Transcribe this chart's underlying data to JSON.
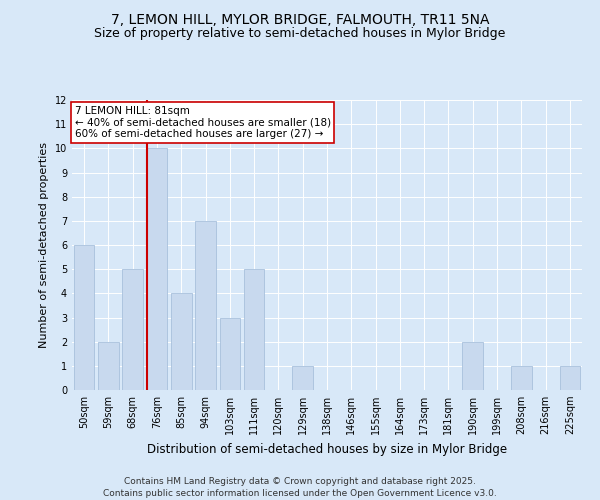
{
  "title": "7, LEMON HILL, MYLOR BRIDGE, FALMOUTH, TR11 5NA",
  "subtitle": "Size of property relative to semi-detached houses in Mylor Bridge",
  "xlabel": "Distribution of semi-detached houses by size in Mylor Bridge",
  "ylabel": "Number of semi-detached properties",
  "categories": [
    "50sqm",
    "59sqm",
    "68sqm",
    "76sqm",
    "85sqm",
    "94sqm",
    "103sqm",
    "111sqm",
    "120sqm",
    "129sqm",
    "138sqm",
    "146sqm",
    "155sqm",
    "164sqm",
    "173sqm",
    "181sqm",
    "190sqm",
    "199sqm",
    "208sqm",
    "216sqm",
    "225sqm"
  ],
  "values": [
    6,
    2,
    5,
    10,
    4,
    7,
    3,
    5,
    0,
    1,
    0,
    0,
    0,
    0,
    0,
    0,
    2,
    0,
    1,
    0,
    1
  ],
  "bar_color": "#c8d9ee",
  "bar_edge_color": "#a8c0dc",
  "highlight_line_color": "#cc0000",
  "annotation_text": "7 LEMON HILL: 81sqm\n← 40% of semi-detached houses are smaller (18)\n60% of semi-detached houses are larger (27) →",
  "annotation_box_color": "#ffffff",
  "annotation_box_edge_color": "#cc0000",
  "ylim": [
    0,
    12
  ],
  "yticks": [
    0,
    1,
    2,
    3,
    4,
    5,
    6,
    7,
    8,
    9,
    10,
    11,
    12
  ],
  "background_color": "#d8e8f8",
  "plot_background_color": "#d8e8f8",
  "footer": "Contains HM Land Registry data © Crown copyright and database right 2025.\nContains public sector information licensed under the Open Government Licence v3.0.",
  "title_fontsize": 10,
  "subtitle_fontsize": 9,
  "xlabel_fontsize": 8.5,
  "ylabel_fontsize": 8,
  "tick_fontsize": 7,
  "annotation_fontsize": 7.5,
  "footer_fontsize": 6.5
}
